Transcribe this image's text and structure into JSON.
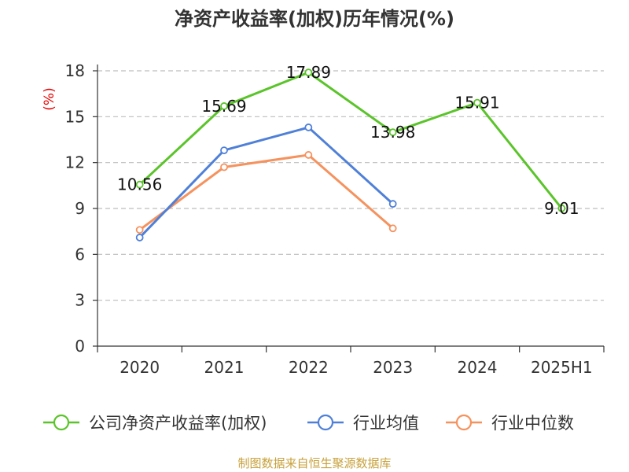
{
  "chart_data": {
    "type": "line",
    "title": "净资产收益率(加权)历年情况(%)",
    "y_unit": "(%)",
    "categories": [
      "2020",
      "2021",
      "2022",
      "2023",
      "2024",
      "2025H1"
    ],
    "ylim": [
      0,
      18
    ],
    "yticks": [
      "0",
      "3",
      "6",
      "9",
      "12",
      "15",
      "18"
    ],
    "grid": true,
    "legend_position": "bottom",
    "series": [
      {
        "name": "公司净资产收益率(加权)",
        "color": "#5bc42a",
        "values": [
          10.56,
          15.69,
          17.89,
          13.98,
          15.91,
          9.01
        ],
        "labels": [
          "10.56",
          "15.69",
          "17.89",
          "13.98",
          "15.91",
          "9.01"
        ]
      },
      {
        "name": "行业均值",
        "color": "#4f80d8",
        "values": [
          7.1,
          12.8,
          14.3,
          9.3,
          null,
          null
        ]
      },
      {
        "name": "行业中位数",
        "color": "#f5925e",
        "values": [
          7.6,
          11.7,
          12.5,
          7.7,
          null,
          null
        ]
      }
    ]
  },
  "source": "制图数据来自恒生聚源数据库"
}
